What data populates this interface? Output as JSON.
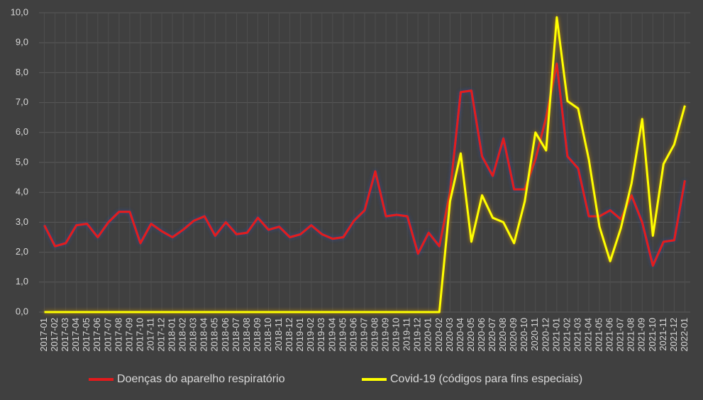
{
  "chart_data": {
    "type": "line",
    "categories": [
      "2017-01",
      "2017-02",
      "2017-03",
      "2017-04",
      "2017-05",
      "2017-06",
      "2017-07",
      "2017-08",
      "2017-09",
      "2017-10",
      "2017-11",
      "2017-12",
      "2018-01",
      "2018-02",
      "2018-03",
      "2018-04",
      "2018-05",
      "2018-06",
      "2018-07",
      "2018-08",
      "2018-09",
      "2018-10",
      "2018-11",
      "2018-12",
      "2019-01",
      "2019-02",
      "2019-03",
      "2019-04",
      "2019-05",
      "2019-06",
      "2019-07",
      "2019-08",
      "2019-09",
      "2019-10",
      "2019-11",
      "2019-12",
      "2020-01",
      "2020-02",
      "2020-03",
      "2020-04",
      "2020-05",
      "2020-06",
      "2020-07",
      "2020-08",
      "2020-09",
      "2020-10",
      "2020-11",
      "2020-12",
      "2021-01",
      "2021-02",
      "2021-03",
      "2021-04",
      "2021-05",
      "2021-06",
      "2021-07",
      "2021-08",
      "2021-09",
      "2021-10",
      "2021-11",
      "2021-12",
      "2022-01"
    ],
    "series": [
      {
        "name": "Doenças do aparelho respiratório",
        "color": "#e31a1c",
        "glow": "#2a4a9a",
        "values": [
          2.9,
          2.2,
          2.3,
          2.9,
          2.95,
          2.5,
          3.0,
          3.35,
          3.35,
          2.3,
          2.95,
          2.7,
          2.5,
          2.75,
          3.05,
          3.2,
          2.55,
          3.0,
          2.6,
          2.65,
          3.15,
          2.75,
          2.85,
          2.5,
          2.6,
          2.9,
          2.6,
          2.45,
          2.5,
          3.05,
          3.4,
          4.7,
          3.2,
          3.25,
          3.2,
          1.95,
          2.65,
          2.2,
          4.0,
          7.35,
          7.4,
          5.2,
          4.55,
          5.8,
          4.1,
          4.1,
          5.1,
          6.5,
          8.3,
          5.2,
          4.8,
          3.2,
          3.2,
          3.4,
          3.1,
          3.9,
          3.0,
          1.55,
          2.35,
          2.4,
          4.4
        ]
      },
      {
        "name": "Covid-19 (códigos para fins especiais)",
        "color": "#ffff00",
        "glow": "#c58a00",
        "values": [
          0,
          0,
          0,
          0,
          0,
          0,
          0,
          0,
          0,
          0,
          0,
          0,
          0,
          0,
          0,
          0,
          0,
          0,
          0,
          0,
          0,
          0,
          0,
          0,
          0,
          0,
          0,
          0,
          0,
          0,
          0,
          0,
          0,
          0,
          0,
          0,
          0,
          0,
          3.7,
          5.3,
          2.35,
          3.9,
          3.15,
          3.0,
          2.3,
          3.7,
          6.0,
          5.4,
          9.85,
          7.05,
          6.8,
          5.1,
          2.85,
          1.7,
          2.8,
          4.3,
          6.45,
          2.55,
          4.95,
          5.6,
          6.9
        ]
      }
    ],
    "ylim": [
      0,
      10
    ],
    "yticks": [
      {
        "value": 0,
        "label": "0,0"
      },
      {
        "value": 1,
        "label": "1,0"
      },
      {
        "value": 2,
        "label": "2,0"
      },
      {
        "value": 3,
        "label": "3,0"
      },
      {
        "value": 4,
        "label": "4,0"
      },
      {
        "value": 5,
        "label": "5,0"
      },
      {
        "value": 6,
        "label": "6,0"
      },
      {
        "value": 7,
        "label": "7,0"
      },
      {
        "value": 8,
        "label": "8,0"
      },
      {
        "value": 9,
        "label": "9,0"
      },
      {
        "value": 10,
        "label": "10,0"
      }
    ],
    "grid": true,
    "legend": "bottom"
  }
}
